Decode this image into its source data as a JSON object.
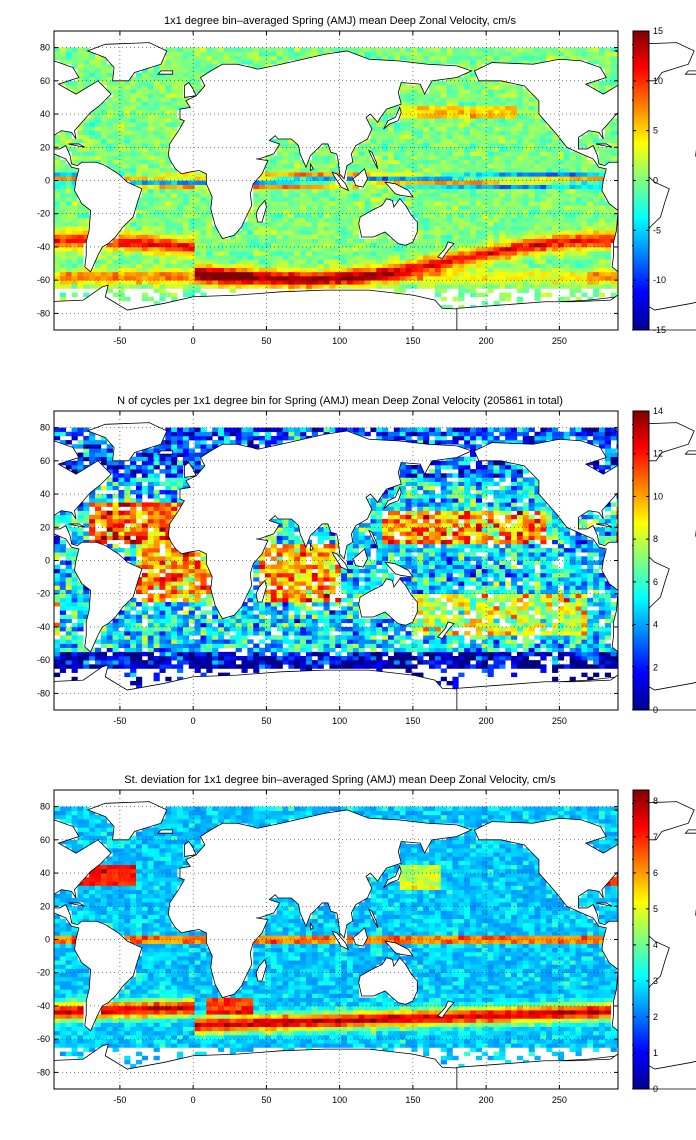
{
  "figure": {
    "panels": [
      {
        "title": "1x1 degree bin–averaged Spring (AMJ) mean Deep Zonal Velocity, cm/s",
        "colorbar_ticks": [
          "15",
          "10",
          "5",
          "0",
          "-5",
          "-10",
          "-15"
        ],
        "x_tick_labels": [
          "-50",
          "0",
          "50",
          "100",
          "150",
          "200",
          "250"
        ],
        "y_tick_labels": [
          "80",
          "60",
          "40",
          "20",
          "0",
          "-20",
          "-40",
          "-60",
          "-80"
        ]
      },
      {
        "title": "N of cycles per 1x1 degree bin for Spring (AMJ) mean Deep Zonal Velocity (205861 in total)",
        "colorbar_ticks": [
          "14",
          "12",
          "10",
          "8",
          "6",
          "4",
          "2",
          "0"
        ],
        "x_tick_labels": [
          "-50",
          "0",
          "50",
          "100",
          "150",
          "200",
          "250"
        ],
        "y_tick_labels": [
          "80",
          "60",
          "40",
          "20",
          "0",
          "-20",
          "-40",
          "-60",
          "-80"
        ]
      },
      {
        "title": "St. deviation for 1x1 degree bin–averaged Spring (AMJ) mean Deep Zonal Velocity, cm/s",
        "colorbar_ticks": [
          "8",
          "7",
          "6",
          "5",
          "4",
          "3",
          "2",
          "1",
          "0"
        ],
        "x_tick_labels": [
          "-50",
          "0",
          "50",
          "100",
          "150",
          "200",
          "250"
        ],
        "y_tick_labels": [
          "80",
          "60",
          "40",
          "20",
          "0",
          "-20",
          "-40",
          "-60",
          "-80"
        ]
      }
    ]
  },
  "chart_data": [
    {
      "type": "heatmap",
      "title": "1x1 degree bin–averaged Spring (AMJ) mean Deep Zonal Velocity, cm/s",
      "xlim": [
        -95,
        290
      ],
      "ylim": [
        -90,
        90
      ],
      "xticks": [
        -50,
        0,
        50,
        100,
        150,
        200,
        250
      ],
      "yticks": [
        80,
        60,
        40,
        20,
        0,
        -20,
        -40,
        -60,
        -80
      ],
      "colorbar": {
        "range": [
          -15,
          15
        ],
        "ticks": [
          15,
          10,
          5,
          0,
          -5,
          -10,
          -15
        ],
        "colormap": "jet"
      },
      "grid": true,
      "field_description": "Mostly near 0 (cyan/green); strong eastward bands (red, up to ~15) along the Antarctic Circumpolar Current near -45 to -60 latitude; alternating eastward/westward jets along the equator."
    },
    {
      "type": "heatmap",
      "title": "N of cycles per 1x1 degree bin for Spring (AMJ) mean Deep Zonal Velocity (205861 in total)",
      "xlim": [
        -95,
        290
      ],
      "ylim": [
        -90,
        90
      ],
      "xticks": [
        -50,
        0,
        50,
        100,
        150,
        200,
        250
      ],
      "yticks": [
        80,
        60,
        40,
        20,
        0,
        -20,
        -40,
        -60,
        -80
      ],
      "colorbar": {
        "range": [
          0,
          14
        ],
        "ticks": [
          14,
          12,
          10,
          8,
          6,
          4,
          2,
          0
        ],
        "colormap": "jet"
      },
      "grid": true,
      "total_cycles": 205861,
      "field_description": "High counts (red, 10-14) in subtropical North Atlantic, tropical Atlantic/Indian, and subtropical Pacific; low counts (blue) in the Southern Ocean."
    },
    {
      "type": "heatmap",
      "title": "St. deviation for 1x1 degree bin–averaged Spring (AMJ) mean Deep Zonal Velocity, cm/s",
      "xlim": [
        -95,
        290
      ],
      "ylim": [
        -90,
        90
      ],
      "xticks": [
        -50,
        0,
        50,
        100,
        150,
        200,
        250
      ],
      "yticks": [
        80,
        60,
        40,
        20,
        0,
        -20,
        -40,
        -60,
        -80
      ],
      "colorbar": {
        "range": [
          0,
          8.3
        ],
        "ticks": [
          8,
          7,
          6,
          5,
          4,
          3,
          2,
          1,
          0
        ],
        "colormap": "jet"
      },
      "grid": true,
      "field_description": "Low variability (blue, 1-3) in ocean interiors; high variability (red, 6-8) along the Gulf Stream, equator, Agulhas retroflection and the Antarctic Circumpolar Current."
    }
  ],
  "colors": {
    "ocean_missing": "#ffffff",
    "coastline": "#000000",
    "grid": "#000000"
  }
}
